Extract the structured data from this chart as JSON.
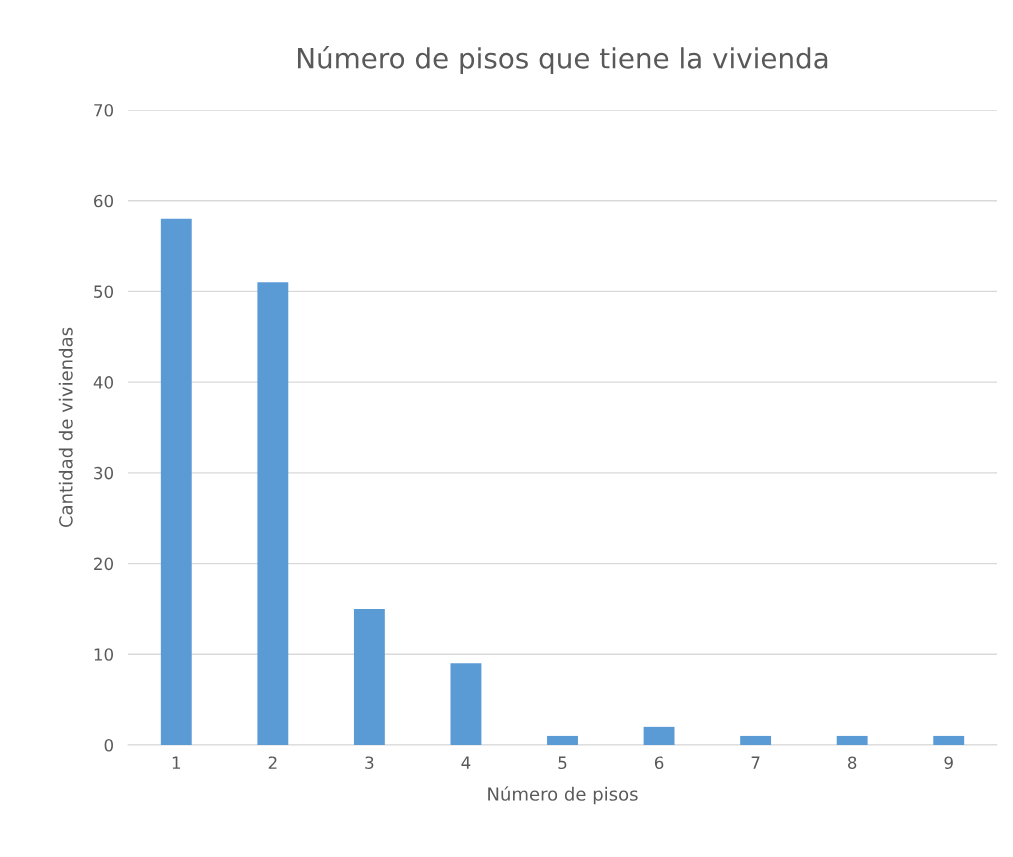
{
  "chart_data": {
    "type": "bar",
    "title": "Número de pisos que tiene la vivienda",
    "xlabel": "Número de pisos",
    "ylabel": "Cantidad de viviendas",
    "categories": [
      "1",
      "2",
      "3",
      "4",
      "5",
      "6",
      "7",
      "8",
      "9"
    ],
    "values": [
      58,
      51,
      15,
      9,
      1,
      2,
      1,
      1,
      1
    ],
    "color": "#5b9bd5",
    "ylim": [
      0,
      70
    ],
    "yticks": [
      0,
      10,
      20,
      30,
      40,
      50,
      60,
      70
    ],
    "grid": "y",
    "legend": false
  }
}
